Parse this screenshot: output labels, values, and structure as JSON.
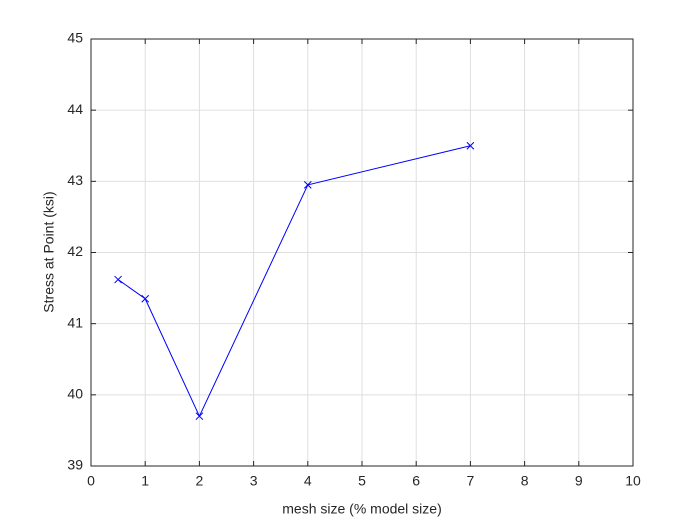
{
  "chart_data": {
    "type": "line",
    "xlabel": "mesh size (% model size)",
    "ylabel": "Stress at Point (ksi)",
    "x": [
      0.5,
      1,
      2,
      4,
      7
    ],
    "values": [
      41.62,
      41.35,
      39.7,
      42.95,
      43.5
    ],
    "color": "#0000ff",
    "marker": "x",
    "xlim": [
      0,
      10
    ],
    "xticks": [
      0,
      1,
      2,
      3,
      4,
      5,
      6,
      7,
      8,
      9,
      10
    ],
    "ylim": [
      39,
      45
    ],
    "yticks": [
      39,
      40,
      41,
      42,
      43,
      44,
      45
    ],
    "grid": true
  }
}
